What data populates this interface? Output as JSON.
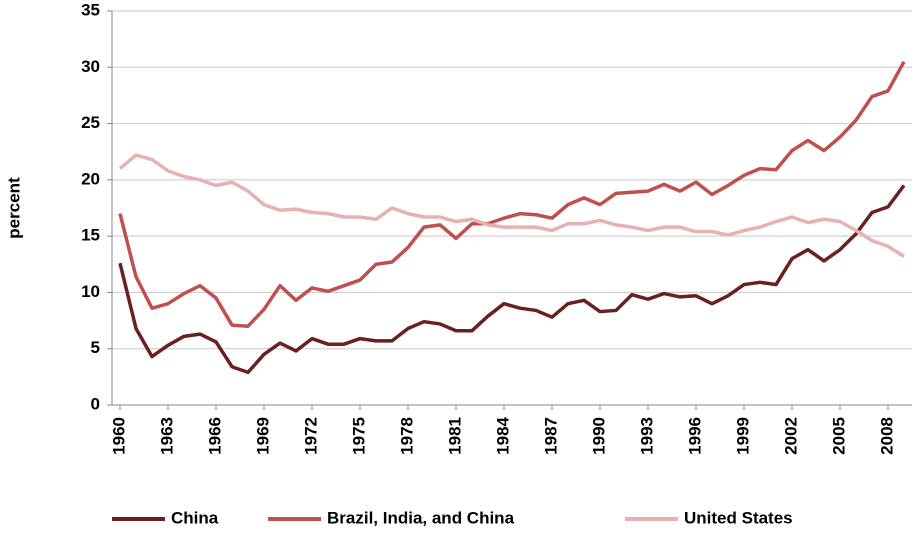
{
  "chart_data": {
    "type": "line",
    "y_label": "percent",
    "x": [
      1960,
      1961,
      1962,
      1963,
      1964,
      1965,
      1966,
      1967,
      1968,
      1969,
      1970,
      1971,
      1972,
      1973,
      1974,
      1975,
      1976,
      1977,
      1978,
      1979,
      1980,
      1981,
      1982,
      1983,
      1984,
      1985,
      1986,
      1987,
      1988,
      1989,
      1990,
      1991,
      1992,
      1993,
      1994,
      1995,
      1996,
      1997,
      1998,
      1999,
      2000,
      2001,
      2002,
      2003,
      2004,
      2005,
      2006,
      2007,
      2008,
      2009
    ],
    "series": [
      {
        "name": "China",
        "color": "#6b1f1f",
        "values": [
          12.6,
          6.8,
          4.3,
          5.3,
          6.1,
          6.3,
          5.6,
          3.4,
          2.9,
          4.5,
          5.5,
          4.8,
          5.9,
          5.4,
          5.4,
          5.9,
          5.7,
          5.7,
          6.8,
          7.4,
          7.2,
          6.6,
          6.6,
          7.9,
          9.0,
          8.6,
          8.4,
          7.8,
          9.0,
          9.3,
          8.3,
          8.4,
          9.8,
          9.4,
          9.9,
          9.6,
          9.7,
          9.0,
          9.7,
          10.7,
          10.9,
          10.7,
          13.0,
          13.8,
          12.8,
          13.8,
          15.2,
          17.1,
          17.6,
          19.5
        ]
      },
      {
        "name": "Brazil, India, and China",
        "color": "#c0504d",
        "values": [
          17.0,
          11.4,
          8.6,
          9.0,
          9.9,
          10.6,
          9.5,
          7.1,
          7.0,
          8.5,
          10.6,
          9.3,
          10.4,
          10.1,
          10.6,
          11.1,
          12.5,
          12.7,
          14.0,
          15.8,
          16.0,
          14.8,
          16.1,
          16.1,
          16.6,
          17.0,
          16.9,
          16.6,
          17.8,
          18.4,
          17.8,
          18.8,
          18.9,
          19.0,
          19.6,
          19.0,
          19.8,
          18.7,
          19.5,
          20.4,
          21.0,
          20.9,
          22.6,
          23.5,
          22.6,
          23.8,
          25.3,
          27.4,
          27.9,
          30.5
        ]
      },
      {
        "name": "United States",
        "color": "#e6b1b0",
        "values": [
          21.0,
          22.2,
          21.8,
          20.8,
          20.3,
          20.0,
          19.5,
          19.8,
          19.0,
          17.8,
          17.3,
          17.4,
          17.1,
          17.0,
          16.7,
          16.7,
          16.5,
          17.5,
          17.0,
          16.7,
          16.7,
          16.3,
          16.5,
          16.0,
          15.8,
          15.8,
          15.8,
          15.5,
          16.1,
          16.1,
          16.4,
          16.0,
          15.8,
          15.5,
          15.8,
          15.8,
          15.4,
          15.4,
          15.1,
          15.5,
          15.8,
          16.3,
          16.7,
          16.2,
          16.5,
          16.3,
          15.5,
          14.6,
          14.1,
          13.2
        ]
      }
    ],
    "xlim": [
      1959.5,
      2009.5
    ],
    "xticks": [
      1960,
      1963,
      1966,
      1969,
      1972,
      1975,
      1978,
      1981,
      1984,
      1987,
      1990,
      1993,
      1996,
      1999,
      2002,
      2005,
      2008
    ],
    "ylim": [
      0,
      35
    ],
    "yticks": [
      0,
      5,
      10,
      15,
      20,
      25,
      30,
      35
    ],
    "grid": true,
    "legend": "bottom"
  }
}
